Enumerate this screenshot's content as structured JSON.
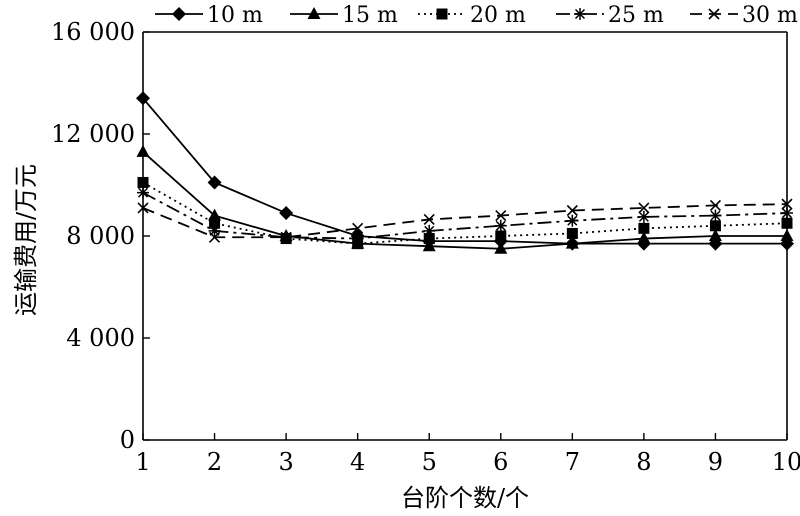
{
  "chart_data": {
    "type": "line",
    "title": "",
    "xlabel": "台阶个数/个",
    "ylabel": "运输费用/万元",
    "x": [
      1,
      2,
      3,
      4,
      5,
      6,
      7,
      8,
      9,
      10
    ],
    "xlim": [
      1,
      10
    ],
    "ylim": [
      0,
      16000
    ],
    "x_ticks": [
      "1",
      "2",
      "3",
      "4",
      "5",
      "6",
      "7",
      "8",
      "9",
      "10"
    ],
    "y_ticks": [
      {
        "value": 0,
        "label": "0"
      },
      {
        "value": 4000,
        "label": "4 000"
      },
      {
        "value": 8000,
        "label": "8 000"
      },
      {
        "value": 12000,
        "label": "12 000"
      },
      {
        "value": 16000,
        "label": "16 000"
      }
    ],
    "grid": false,
    "legend_position": "top",
    "series": [
      {
        "name": "10 m",
        "marker": "diamond",
        "dash": "solid",
        "values": [
          13400,
          10100,
          8900,
          8000,
          7800,
          7800,
          7700,
          7700,
          7700,
          7700
        ]
      },
      {
        "name": "15 m",
        "marker": "triangle",
        "dash": "solid",
        "values": [
          11300,
          8800,
          8000,
          7700,
          7600,
          7500,
          7700,
          7900,
          8000,
          8000
        ]
      },
      {
        "name": "20 m",
        "marker": "square",
        "dash": "dotted",
        "values": [
          10100,
          8500,
          7900,
          7700,
          7900,
          8000,
          8100,
          8300,
          8400,
          8500
        ]
      },
      {
        "name": "25 m",
        "marker": "asterisk",
        "dash": "dashdot",
        "values": [
          9700,
          8200,
          7950,
          7900,
          8200,
          8400,
          8600,
          8750,
          8800,
          8900
        ]
      },
      {
        "name": "30 m",
        "marker": "x",
        "dash": "dashed",
        "values": [
          9100,
          7950,
          7950,
          8300,
          8650,
          8800,
          9000,
          9100,
          9200,
          9250
        ]
      }
    ]
  }
}
